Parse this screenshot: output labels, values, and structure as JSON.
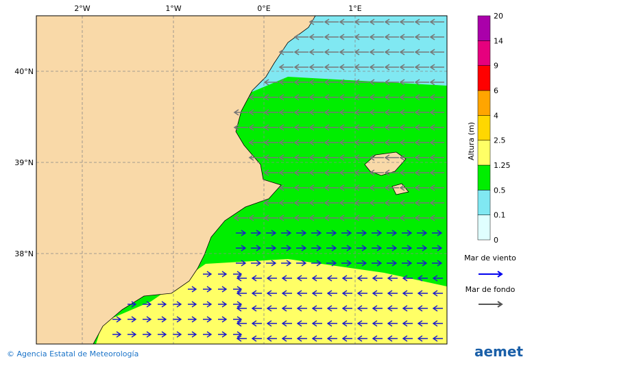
{
  "map": {
    "lon_labels": [
      "2°W",
      "1°W",
      "0°E",
      "1°E"
    ],
    "lat_labels": [
      "40°N",
      "39°N",
      "38°N"
    ],
    "colorbar": {
      "title": "Altura (m)",
      "ticks": [
        "0",
        "0.1",
        "0.5",
        "1.25",
        "2.5",
        "4",
        "6",
        "9",
        "14",
        "20"
      ],
      "colors": [
        "#e0ffff",
        "#80e8f2",
        "#00ee00",
        "#ffff66",
        "#ffd700",
        "#ffa500",
        "#ff0000",
        "#e6007e",
        "#aa00aa"
      ]
    },
    "legend": [
      {
        "label": "Mar de viento",
        "color": "#0000ee"
      },
      {
        "label": "Mar de fondo",
        "color": "#555555"
      }
    ],
    "credit": "© Agencia Estatal de Meteorología",
    "logo": "aemet"
  }
}
